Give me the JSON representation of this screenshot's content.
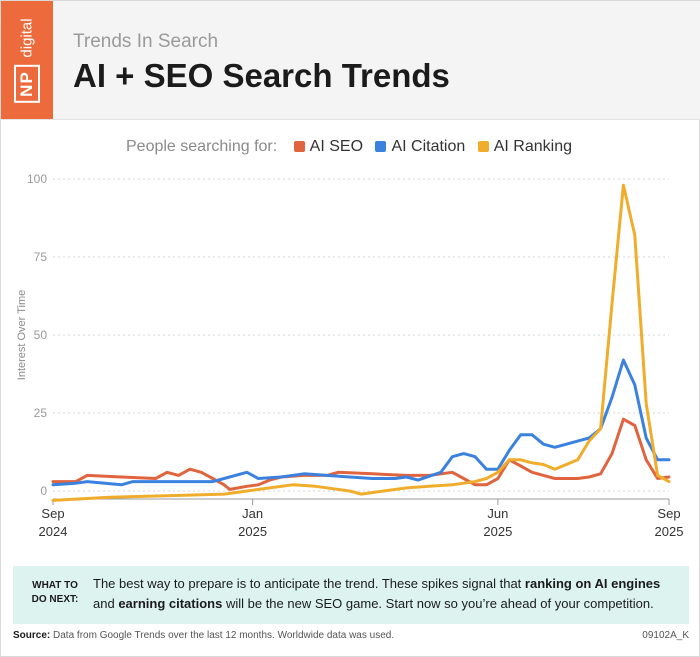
{
  "header": {
    "logo_np": "NP",
    "logo_digital": "digital",
    "subtitle": "Trends In Search",
    "title": "AI + SEO Search Trends"
  },
  "legend": {
    "lead": "People searching for:"
  },
  "note": {
    "label": "WHAT TO DO NEXT:",
    "text_1": "The best way to prepare is to anticipate the trend. These spikes signal that ",
    "bold_1": "ranking on AI engines",
    "text_2": " and ",
    "bold_2": "earning citations",
    "text_3": " will be the new SEO game. Start now so you’re ahead of your competition."
  },
  "footer": {
    "source_label": "Source:",
    "source_text": " Data from Google Trends over the last 12 months. Worldwide data was used.",
    "code": "09102A_K"
  },
  "chart_data": {
    "type": "line",
    "ylabel": "Interest Over Time",
    "ylim": [
      0,
      100
    ],
    "yticks": [
      0,
      25,
      50,
      75,
      100
    ],
    "xlim": [
      0,
      52
    ],
    "xticks": [
      {
        "pos": 0,
        "line1": "Sep",
        "line2": "2024"
      },
      {
        "pos": 17.5,
        "line1": "Jan",
        "line2": "2025"
      },
      {
        "pos": 39,
        "line1": "Jun",
        "line2": "2025"
      },
      {
        "pos": 52,
        "line1": "Sep",
        "line2": "2025"
      }
    ],
    "grid": true,
    "series": [
      {
        "name": "AI SEO",
        "color": "#e0643e",
        "points": [
          [
            0,
            3
          ],
          [
            2,
            3
          ],
          [
            3,
            5
          ],
          [
            6,
            4.5
          ],
          [
            9,
            4
          ],
          [
            10,
            6
          ],
          [
            11,
            5
          ],
          [
            12,
            7
          ],
          [
            13,
            6
          ],
          [
            14,
            4
          ],
          [
            15,
            2
          ],
          [
            15.5,
            0.5
          ],
          [
            17,
            1.5
          ],
          [
            18,
            2
          ],
          [
            19,
            3.5
          ],
          [
            20,
            4.5
          ],
          [
            22,
            5
          ],
          [
            24,
            5
          ],
          [
            25,
            6
          ],
          [
            28,
            5.5
          ],
          [
            31,
            5
          ],
          [
            33,
            5
          ],
          [
            35,
            6
          ],
          [
            36,
            4
          ],
          [
            37,
            2
          ],
          [
            38,
            2
          ],
          [
            39,
            4
          ],
          [
            40,
            10
          ],
          [
            41,
            8
          ],
          [
            42,
            6
          ],
          [
            43,
            5
          ],
          [
            44,
            4
          ],
          [
            46,
            4
          ],
          [
            47,
            4.5
          ],
          [
            48,
            5.5
          ],
          [
            49,
            12
          ],
          [
            50,
            23
          ],
          [
            51,
            21
          ],
          [
            52,
            10
          ],
          [
            53,
            4
          ],
          [
            54,
            4.5
          ]
        ]
      },
      {
        "name": "AI Citation",
        "color": "#3b82e0",
        "points": [
          [
            0,
            2
          ],
          [
            2,
            2.5
          ],
          [
            3,
            3
          ],
          [
            6,
            2
          ],
          [
            7,
            3
          ],
          [
            9,
            3
          ],
          [
            14,
            3
          ],
          [
            15,
            4
          ],
          [
            17,
            6
          ],
          [
            18,
            4
          ],
          [
            20,
            4.5
          ],
          [
            22,
            5.5
          ],
          [
            24,
            5
          ],
          [
            26,
            4.5
          ],
          [
            28,
            4
          ],
          [
            30,
            4
          ],
          [
            31,
            4.5
          ],
          [
            32,
            3.5
          ],
          [
            34,
            6
          ],
          [
            35,
            11
          ],
          [
            36,
            12
          ],
          [
            37,
            11
          ],
          [
            38,
            7
          ],
          [
            39,
            7
          ],
          [
            40,
            13
          ],
          [
            41,
            18
          ],
          [
            42,
            18
          ],
          [
            43,
            15
          ],
          [
            44,
            14
          ],
          [
            46,
            16
          ],
          [
            47,
            17
          ],
          [
            48,
            20
          ],
          [
            49,
            30
          ],
          [
            50,
            42
          ],
          [
            51,
            34
          ],
          [
            52,
            17
          ],
          [
            53,
            10
          ],
          [
            54,
            10
          ]
        ]
      },
      {
        "name": "AI Ranking",
        "color": "#f0ad2c",
        "points": [
          [
            0,
            -3
          ],
          [
            5,
            -2
          ],
          [
            10,
            -1.5
          ],
          [
            15,
            -1
          ],
          [
            17,
            0
          ],
          [
            19,
            1
          ],
          [
            21,
            2
          ],
          [
            23,
            1.5
          ],
          [
            26,
            0
          ],
          [
            27,
            -1
          ],
          [
            29,
            0
          ],
          [
            31,
            1
          ],
          [
            33,
            1.5
          ],
          [
            35,
            2
          ],
          [
            36,
            2.5
          ],
          [
            37,
            3
          ],
          [
            38,
            4
          ],
          [
            39,
            6
          ],
          [
            40,
            10
          ],
          [
            41,
            10
          ],
          [
            42,
            9
          ],
          [
            43,
            8.5
          ],
          [
            44,
            7
          ],
          [
            46,
            10
          ],
          [
            47,
            16
          ],
          [
            48,
            20
          ],
          [
            49,
            60
          ],
          [
            50,
            98
          ],
          [
            51,
            82
          ],
          [
            52,
            28
          ],
          [
            53,
            5
          ],
          [
            54,
            3
          ]
        ]
      }
    ]
  }
}
